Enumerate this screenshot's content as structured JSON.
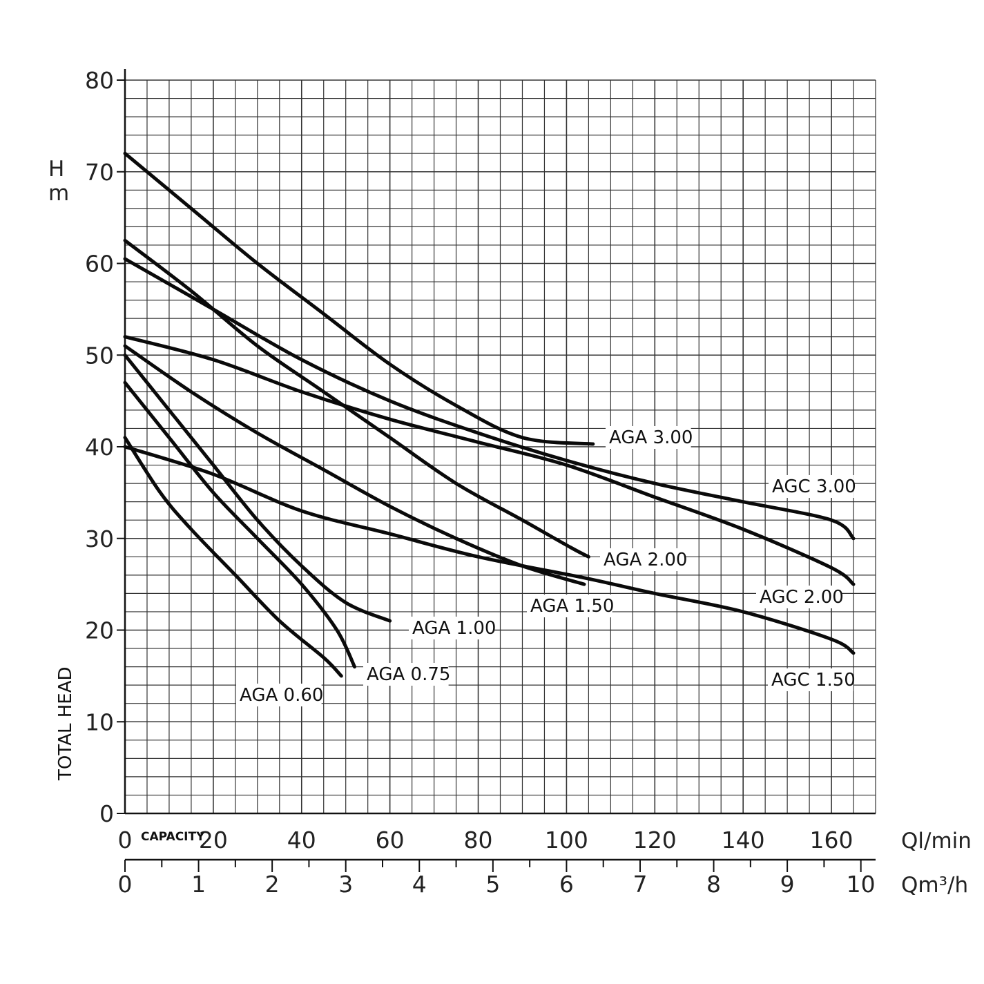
{
  "chart_data": {
    "type": "line",
    "ylabel_unit": "H\nm",
    "ylabel": "TOTAL HEAD",
    "xlabel": "CAPACITY",
    "x_unit": "Ql/min",
    "x2_unit": "Qm³/h",
    "xlim": [
      0,
      170
    ],
    "ylim": [
      0,
      80
    ],
    "x_ticks": [
      "0",
      "20",
      "40",
      "60",
      "80",
      "100",
      "120",
      "140",
      "160"
    ],
    "x2_ticks": [
      "0",
      "1",
      "2",
      "3",
      "4",
      "5",
      "6",
      "7",
      "8",
      "9",
      "10"
    ],
    "y_ticks": [
      "0",
      "10",
      "20",
      "30",
      "40",
      "50",
      "60",
      "70",
      "80"
    ],
    "grid": true,
    "series": [
      {
        "name": "AGA 3.00",
        "points": [
          [
            0,
            72
          ],
          [
            15,
            66
          ],
          [
            30,
            60
          ],
          [
            45,
            54.5
          ],
          [
            60,
            49
          ],
          [
            75,
            44.5
          ],
          [
            90,
            41
          ],
          [
            106,
            40.3
          ]
        ]
      },
      {
        "name": "AGC 3.00",
        "points": [
          [
            0,
            60.5
          ],
          [
            20,
            55
          ],
          [
            40,
            49.5
          ],
          [
            60,
            45
          ],
          [
            80,
            41.5
          ],
          [
            100,
            38.5
          ],
          [
            120,
            36
          ],
          [
            140,
            34
          ],
          [
            160,
            32
          ],
          [
            165,
            30
          ]
        ]
      },
      {
        "name": "AGA 2.00",
        "points": [
          [
            0,
            62.5
          ],
          [
            15,
            57
          ],
          [
            30,
            51
          ],
          [
            45,
            46
          ],
          [
            60,
            41
          ],
          [
            75,
            36
          ],
          [
            90,
            32
          ],
          [
            101,
            29
          ],
          [
            105,
            28
          ]
        ]
      },
      {
        "name": "AGC 2.00",
        "points": [
          [
            0,
            52
          ],
          [
            20,
            49.5
          ],
          [
            40,
            46
          ],
          [
            60,
            43
          ],
          [
            80,
            40.5
          ],
          [
            100,
            38
          ],
          [
            120,
            34.5
          ],
          [
            140,
            31
          ],
          [
            160,
            26.8
          ],
          [
            165,
            25
          ]
        ]
      },
      {
        "name": "AGA 1.50",
        "points": [
          [
            0,
            51
          ],
          [
            15,
            46
          ],
          [
            30,
            41.5
          ],
          [
            45,
            37.5
          ],
          [
            60,
            33.5
          ],
          [
            75,
            30
          ],
          [
            90,
            27
          ],
          [
            104,
            25
          ]
        ]
      },
      {
        "name": "AGC 1.50",
        "points": [
          [
            0,
            40
          ],
          [
            20,
            37
          ],
          [
            40,
            33
          ],
          [
            60,
            30.5
          ],
          [
            80,
            28
          ],
          [
            104,
            25.7
          ],
          [
            120,
            24
          ],
          [
            140,
            22
          ],
          [
            160,
            19
          ],
          [
            165,
            17.5
          ]
        ]
      },
      {
        "name": "AGA 1.00",
        "points": [
          [
            0,
            50
          ],
          [
            10,
            44
          ],
          [
            20,
            38
          ],
          [
            30,
            32
          ],
          [
            40,
            27
          ],
          [
            50,
            23
          ],
          [
            60,
            21
          ]
        ]
      },
      {
        "name": "AGA 0.75",
        "points": [
          [
            0,
            47
          ],
          [
            10,
            41
          ],
          [
            20,
            35
          ],
          [
            30,
            30
          ],
          [
            40,
            25
          ],
          [
            48,
            20
          ],
          [
            52,
            16
          ]
        ]
      },
      {
        "name": "AGA 0.60",
        "points": [
          [
            0,
            41
          ],
          [
            8,
            35
          ],
          [
            15,
            31
          ],
          [
            25,
            26
          ],
          [
            35,
            21
          ],
          [
            45,
            17
          ],
          [
            49,
            15
          ]
        ]
      }
    ],
    "labels": [
      "AGA 3.00",
      "AGC 3.00",
      "AGA 2.00",
      "AGC 2.00",
      "AGA 1.50",
      "AGC 1.50",
      "AGA 1.00",
      "AGA 0.75",
      "AGA 0.60"
    ]
  }
}
